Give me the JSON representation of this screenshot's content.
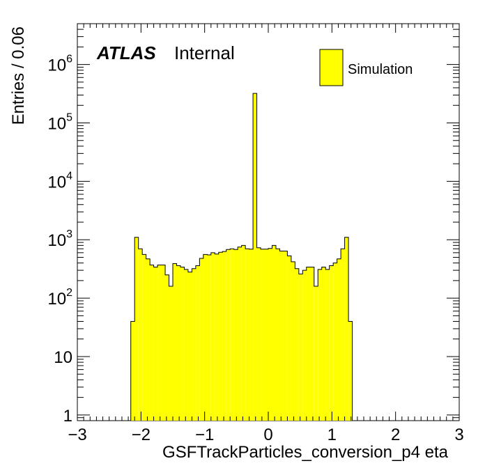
{
  "chart_data": {
    "type": "bar",
    "title": "",
    "xlabel": "GSFTrackParticles_conversion_p4 eta",
    "ylabel": "Entries / 0.06",
    "xlim": [
      -3,
      3
    ],
    "ylim": [
      0.8,
      5000000
    ],
    "yscale": "log",
    "x_ticks": [
      -3,
      -2,
      -1,
      0,
      1,
      2,
      3
    ],
    "x_tick_labels": [
      "−3",
      "−2",
      "−1",
      "0",
      "1",
      "2",
      "3"
    ],
    "y_tick_labels": [
      {
        "value": 1,
        "base": "1",
        "exp": ""
      },
      {
        "value": 10,
        "base": "10",
        "exp": ""
      },
      {
        "value": 100,
        "base": "10",
        "exp": "2"
      },
      {
        "value": 1000,
        "base": "10",
        "exp": "3"
      },
      {
        "value": 10000,
        "base": "10",
        "exp": "4"
      },
      {
        "value": 100000,
        "base": "10",
        "exp": "5"
      },
      {
        "value": 1000000,
        "base": "10",
        "exp": "6"
      }
    ],
    "bin_width": 0.06,
    "bin_start": -2.16,
    "values": [
      40,
      1100,
      700,
      560,
      470,
      370,
      340,
      370,
      370,
      250,
      160,
      390,
      360,
      340,
      310,
      280,
      320,
      360,
      480,
      560,
      550,
      600,
      570,
      610,
      630,
      680,
      700,
      680,
      750,
      800,
      700,
      690,
      320000,
      730,
      690,
      690,
      710,
      800,
      700,
      640,
      640,
      530,
      420,
      320,
      260,
      300,
      340,
      340,
      160,
      310,
      340,
      310,
      360,
      400,
      470,
      700,
      1100,
      40
    ],
    "series": [
      {
        "name": "Simulation",
        "color": "#ffff00"
      }
    ],
    "legend_position": "top-right",
    "annotation": {
      "bold": "ATLAS",
      "normal": "Internal"
    },
    "grid": false
  }
}
